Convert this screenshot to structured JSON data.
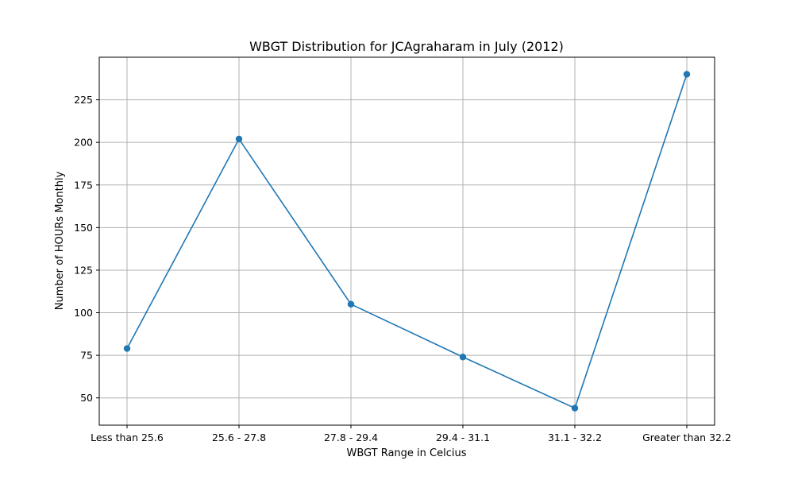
{
  "chart_data": {
    "type": "line",
    "title": "WBGT Distribution for JCAgraharam in July (2012)",
    "xlabel": "WBGT Range in Celcius",
    "ylabel": "Number of HOURs Monthly",
    "categories": [
      "Less than 25.6",
      "25.6 - 27.8",
      "27.8 - 29.4",
      "29.4 - 31.1",
      "31.1 - 32.2",
      "Greater than 32.2"
    ],
    "series": [
      {
        "values": [
          79,
          202,
          105,
          74,
          44,
          240
        ]
      }
    ],
    "ylim": [
      34,
      250
    ],
    "yticks": [
      50,
      75,
      100,
      125,
      150,
      175,
      200,
      225
    ],
    "grid": true,
    "marker": "circle",
    "colors": {
      "line": "#1f77b4",
      "grid": "#b0b0b0",
      "axes": "#000000"
    }
  }
}
